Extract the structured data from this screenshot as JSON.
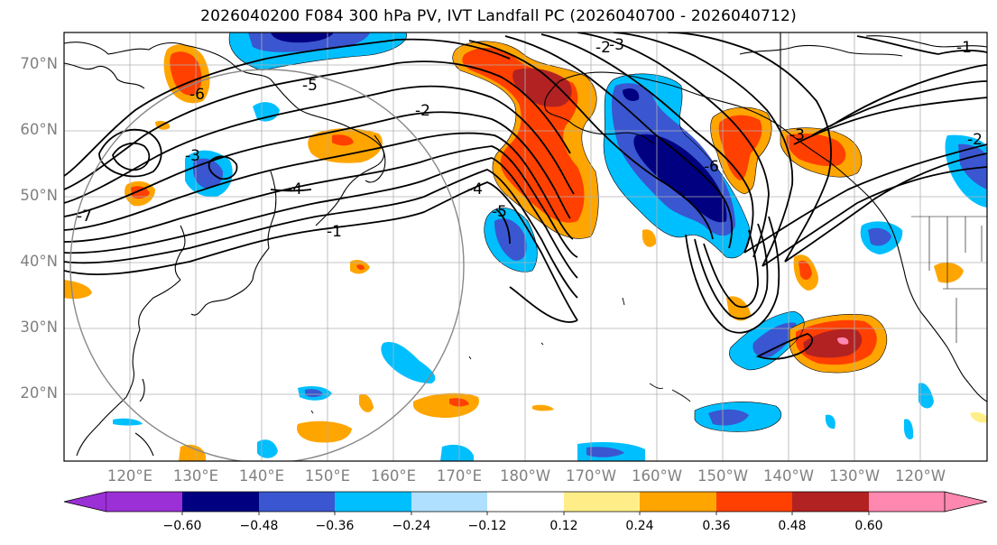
{
  "title": "2026040200 F084 300 hPa PV, IVT Landfall PC (2026040700 - 2026040712)",
  "lat_labels": [
    "70°N",
    "60°N",
    "50°N",
    "40°N",
    "30°N",
    "20°N"
  ],
  "lon_labels": [
    "120°E",
    "130°E",
    "140°E",
    "150°E",
    "160°E",
    "170°E",
    "180°W",
    "170°W",
    "160°W",
    "150°W",
    "140°W",
    "130°W",
    "120°W"
  ],
  "contour_labels": [
    "-1",
    "-2",
    "-3",
    "-4",
    "-5",
    "-6",
    "-7",
    "-2",
    "-3",
    "-4",
    "-5",
    "-6",
    "-1",
    "-2",
    "-3"
  ],
  "colorbar": {
    "ticks": [
      "−0.60",
      "−0.48",
      "−0.36",
      "−0.24",
      "−0.12",
      "0.12",
      "0.24",
      "0.36",
      "0.48",
      "0.60"
    ],
    "colors": [
      "#9b30d6",
      "#000080",
      "#3a56d0",
      "#00bfff",
      "#b0e0ff",
      "#ffffff",
      "#ffee88",
      "#ffa500",
      "#ff4000",
      "#b22222",
      "#ff88b0"
    ]
  },
  "palette": {
    "neg1": "#b0e0ff",
    "neg2": "#00bfff",
    "neg3": "#3a56d0",
    "neg4": "#000080",
    "pos1": "#ffee88",
    "pos2": "#ffa500",
    "pos3": "#ff4000",
    "pos4": "#b22222",
    "pos5": "#ff88b0"
  }
}
